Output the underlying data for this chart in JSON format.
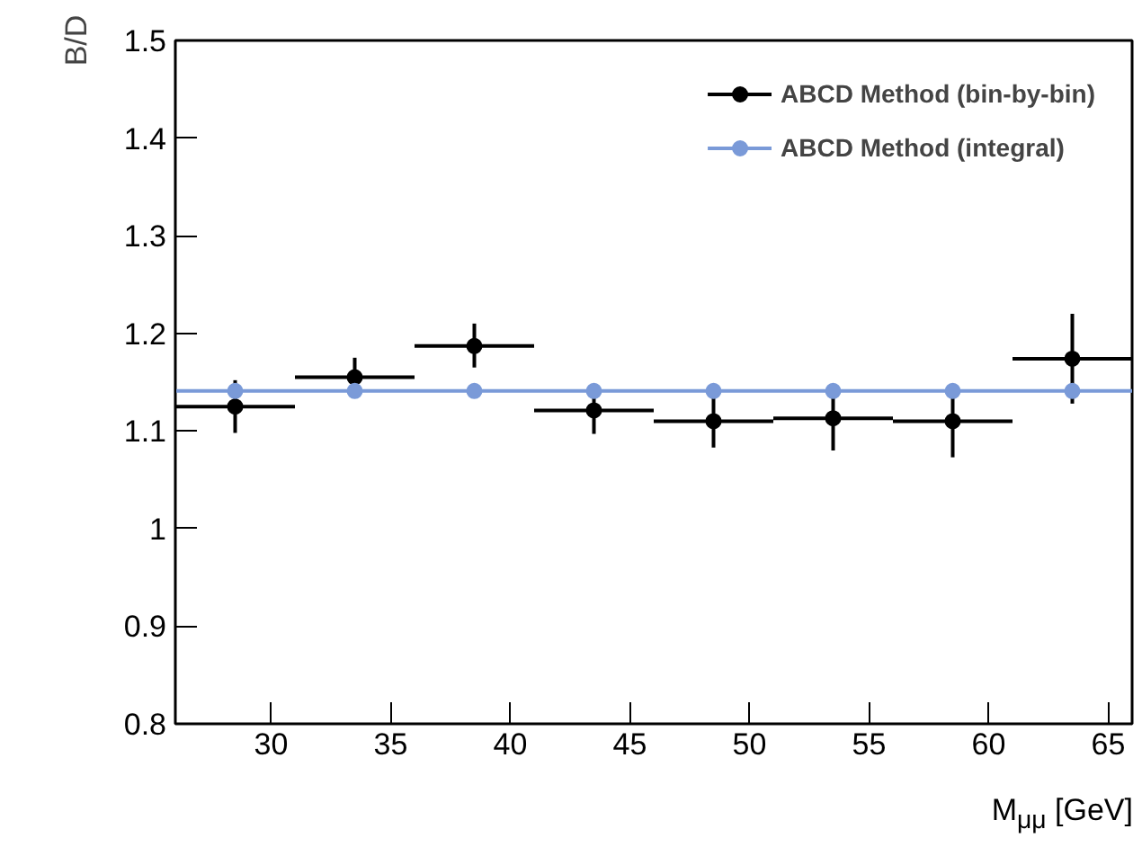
{
  "chart_data": {
    "type": "scatter",
    "xlabel": "M$_{μμ}$ [GeV]",
    "ylabel": "B/D",
    "x": [
      28.5,
      33.5,
      38.5,
      43.5,
      48.5,
      53.5,
      58.5,
      63.5
    ],
    "xlim": [
      26,
      66
    ],
    "ylim": [
      0.8,
      1.5
    ],
    "xticks": [
      30,
      35,
      40,
      45,
      50,
      55,
      60,
      65
    ],
    "yticks": [
      {
        "value": 0.8,
        "label": "0.8"
      },
      {
        "value": 0.9,
        "label": "0.9"
      },
      {
        "value": 1.0,
        "label": "1"
      },
      {
        "value": 1.1,
        "label": "1.1"
      },
      {
        "value": 1.2,
        "label": "1.2"
      },
      {
        "value": 1.3,
        "label": "1.3"
      },
      {
        "value": 1.4,
        "label": "1.4"
      },
      {
        "value": 1.5,
        "label": "1.5"
      }
    ],
    "grid": false,
    "legend": "top right",
    "marker": "circle",
    "series": [
      {
        "name": "ABCD Method (bin-by-bin)",
        "color": "#000000",
        "values": [
          1.125,
          1.155,
          1.187,
          1.121,
          1.11,
          1.113,
          1.11,
          1.174
        ],
        "errors": [
          [
            1.098,
            1.152
          ],
          [
            1.138,
            1.175
          ],
          [
            1.165,
            1.21
          ],
          [
            1.097,
            1.142
          ],
          [
            1.083,
            1.14
          ],
          [
            1.08,
            1.145
          ],
          [
            1.073,
            1.143
          ],
          [
            1.128,
            1.22
          ]
        ],
        "xerrors": [
          2.5,
          2.5,
          2.5,
          2.5,
          2.5,
          2.5,
          2.5,
          2.5
        ]
      },
      {
        "name": "ABCD Method (integral)",
        "color": "#7a9ad8",
        "values": [
          1.141,
          1.141,
          1.141,
          1.141,
          1.141,
          1.141,
          1.141,
          1.141
        ],
        "xerrors": [
          2.5,
          2.5,
          2.5,
          2.5,
          2.5,
          2.5,
          2.5,
          2.5
        ]
      }
    ]
  }
}
